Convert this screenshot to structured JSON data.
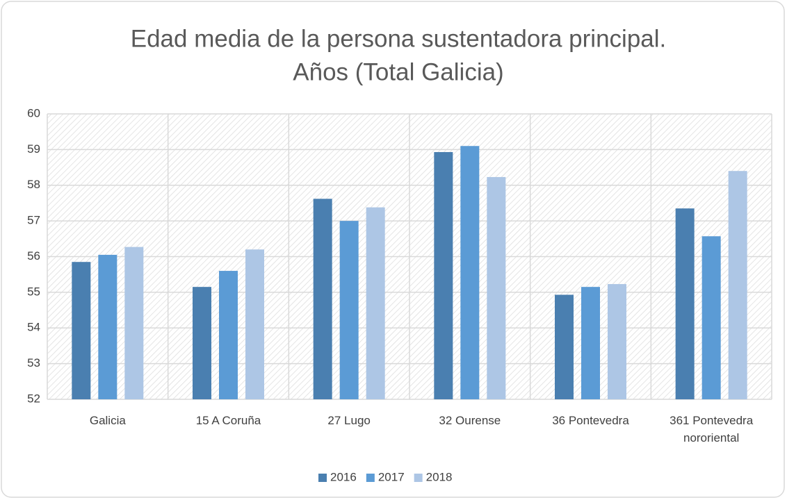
{
  "chart_data": {
    "type": "bar",
    "title": [
      "Edad media de la persona sustentadora principal.",
      "Años (Total Galicia)"
    ],
    "categories": [
      "Galicia",
      "15 A Coruña",
      "27 Lugo",
      "32 Ourense",
      "36 Pontevedra",
      "361 Pontevedra nororiental"
    ],
    "series": [
      {
        "name": "2016",
        "color": "#4a7fb0",
        "values": [
          55.85,
          55.15,
          57.62,
          58.93,
          54.93,
          57.35
        ]
      },
      {
        "name": "2017",
        "color": "#5b9bd5",
        "values": [
          56.05,
          55.6,
          57.0,
          59.1,
          55.15,
          56.57
        ]
      },
      {
        "name": "2018",
        "color": "#adc6e5",
        "values": [
          56.27,
          56.2,
          57.38,
          58.23,
          55.23,
          58.4
        ]
      }
    ],
    "ylim": [
      52,
      60
    ],
    "yticks": [
      52,
      53,
      54,
      55,
      56,
      57,
      58,
      59,
      60
    ],
    "grid": true,
    "legend": "bottom"
  }
}
